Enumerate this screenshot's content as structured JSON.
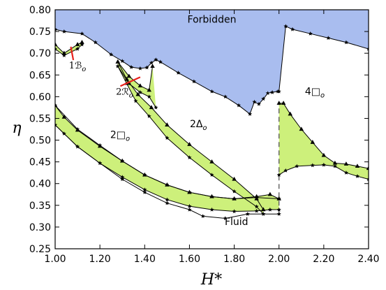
{
  "chart_data": {
    "type": "line",
    "title": "",
    "xlabel": "H*",
    "ylabel": "η",
    "xlim": [
      1.0,
      2.4
    ],
    "ylim": [
      0.25,
      0.8
    ],
    "x_ticks": [
      "1.00",
      "1.20",
      "1.40",
      "1.60",
      "1.80",
      "2.00",
      "2.20",
      "2.40"
    ],
    "y_ticks": [
      "0.25",
      "0.30",
      "0.35",
      "0.40",
      "0.45",
      "0.50",
      "0.55",
      "0.60",
      "0.65",
      "0.70",
      "0.75",
      "0.80"
    ],
    "grid": false,
    "legend": "none",
    "colors": {
      "forbidden_fill": "#a9bdef",
      "coexistence_fill": "#cdf07b",
      "line": "#000000",
      "annotation_arrow": "#e8201c"
    },
    "region_labels": [
      {
        "text": "Forbidden",
        "x": 1.7,
        "y": 0.77
      },
      {
        "text": "2□",
        "sub": "o",
        "x": 1.29,
        "y": 0.505
      },
      {
        "text": "2Δ",
        "sub": "o",
        "x": 1.64,
        "y": 0.53
      },
      {
        "text": "4□",
        "sub": "o",
        "x": 2.16,
        "y": 0.605
      },
      {
        "text": "Fluid",
        "x": 1.81,
        "y": 0.305
      }
    ],
    "annotations": [
      {
        "text": "1ℬ",
        "sub": "o",
        "x": 1.1,
        "y": 0.665,
        "arrow_to": [
          1.07,
          0.715
        ]
      },
      {
        "text": "2ℛ",
        "sub": "o",
        "x": 1.31,
        "y": 0.605,
        "arrow_to": [
          1.38,
          0.645
        ]
      }
    ],
    "forbidden_boundary": [
      [
        1.0,
        0.755
      ],
      [
        1.04,
        0.75
      ],
      [
        1.12,
        0.745
      ],
      [
        1.18,
        0.725
      ],
      [
        1.25,
        0.697
      ],
      [
        1.3,
        0.682
      ],
      [
        1.34,
        0.668
      ],
      [
        1.38,
        0.665
      ],
      [
        1.41,
        0.667
      ],
      [
        1.43,
        0.678
      ],
      [
        1.45,
        0.685
      ],
      [
        1.47,
        0.68
      ],
      [
        1.55,
        0.655
      ],
      [
        1.62,
        0.635
      ],
      [
        1.7,
        0.612
      ],
      [
        1.76,
        0.6
      ],
      [
        1.82,
        0.58
      ],
      [
        1.87,
        0.56
      ],
      [
        1.89,
        0.588
      ],
      [
        1.91,
        0.583
      ],
      [
        1.93,
        0.595
      ],
      [
        1.95,
        0.608
      ],
      [
        1.97,
        0.61
      ],
      [
        1.995,
        0.612
      ],
      [
        2.0,
        0.612
      ],
      [
        2.03,
        0.762
      ],
      [
        2.06,
        0.755
      ],
      [
        2.14,
        0.745
      ],
      [
        2.22,
        0.735
      ],
      [
        2.3,
        0.725
      ],
      [
        2.4,
        0.71
      ]
    ],
    "series": [
      {
        "id": "2sq_lower",
        "upper": [
          [
            1.0,
            0.58
          ],
          [
            1.04,
            0.553
          ],
          [
            1.1,
            0.523
          ],
          [
            1.2,
            0.486
          ],
          [
            1.3,
            0.452
          ],
          [
            1.4,
            0.42
          ],
          [
            1.5,
            0.397
          ],
          [
            1.6,
            0.38
          ],
          [
            1.7,
            0.37
          ],
          [
            1.8,
            0.365
          ],
          [
            1.9,
            0.37
          ],
          [
            1.96,
            0.375
          ],
          [
            2.0,
            0.365
          ]
        ],
        "lower": [
          [
            1.0,
            0.535
          ],
          [
            1.04,
            0.515
          ],
          [
            1.1,
            0.485
          ],
          [
            1.2,
            0.447
          ],
          [
            1.3,
            0.415
          ],
          [
            1.4,
            0.386
          ],
          [
            1.5,
            0.363
          ],
          [
            1.6,
            0.348
          ],
          [
            1.7,
            0.34
          ],
          [
            1.8,
            0.336
          ],
          [
            1.9,
            0.337
          ],
          [
            1.96,
            0.34
          ],
          [
            2.0,
            0.34
          ]
        ]
      },
      {
        "id": "2sq_upper",
        "upper": [
          [
            1.28,
            0.68
          ],
          [
            1.32,
            0.64
          ],
          [
            1.37,
            0.605
          ],
          [
            1.43,
            0.575
          ],
          [
            1.5,
            0.535
          ],
          [
            1.6,
            0.49
          ],
          [
            1.7,
            0.45
          ],
          [
            1.8,
            0.41
          ],
          [
            1.9,
            0.365
          ],
          [
            1.93,
            0.34
          ]
        ],
        "lower": [
          [
            1.28,
            0.67
          ],
          [
            1.32,
            0.63
          ],
          [
            1.36,
            0.59
          ],
          [
            1.42,
            0.555
          ],
          [
            1.5,
            0.505
          ],
          [
            1.6,
            0.46
          ],
          [
            1.7,
            0.42
          ],
          [
            1.8,
            0.382
          ],
          [
            1.9,
            0.347
          ],
          [
            1.93,
            0.33
          ]
        ]
      },
      {
        "id": "rect_sliver",
        "upper": [
          [
            1.28,
            0.68
          ],
          [
            1.33,
            0.647
          ],
          [
            1.38,
            0.625
          ],
          [
            1.42,
            0.615
          ],
          [
            1.435,
            0.67
          ]
        ],
        "lower": [
          [
            1.28,
            0.67
          ],
          [
            1.33,
            0.63
          ],
          [
            1.38,
            0.61
          ],
          [
            1.42,
            0.6
          ],
          [
            1.45,
            0.575
          ]
        ]
      },
      {
        "id": "buckled",
        "upper": [
          [
            1.0,
            0.72
          ],
          [
            1.04,
            0.7
          ],
          [
            1.1,
            0.72
          ],
          [
            1.12,
            0.725
          ]
        ],
        "lower": [
          [
            1.0,
            0.71
          ],
          [
            1.04,
            0.695
          ],
          [
            1.1,
            0.71
          ],
          [
            1.12,
            0.72
          ]
        ]
      },
      {
        "id": "fluid_upper_branch",
        "line": [
          [
            1.0,
            0.58
          ],
          [
            1.1,
            0.525
          ],
          [
            1.2,
            0.488
          ],
          [
            1.3,
            0.452
          ],
          [
            1.4,
            0.42
          ],
          [
            1.5,
            0.397
          ],
          [
            1.6,
            0.38
          ],
          [
            1.7,
            0.37
          ],
          [
            1.8,
            0.365
          ],
          [
            1.9,
            0.368
          ],
          [
            2.0,
            0.365
          ]
        ]
      },
      {
        "id": "4sq",
        "upper": [
          [
            2.0,
            0.585
          ],
          [
            2.02,
            0.585
          ],
          [
            2.05,
            0.56
          ],
          [
            2.1,
            0.525
          ],
          [
            2.15,
            0.495
          ],
          [
            2.2,
            0.465
          ],
          [
            2.25,
            0.447
          ],
          [
            2.3,
            0.445
          ],
          [
            2.35,
            0.44
          ],
          [
            2.4,
            0.435
          ]
        ],
        "lower": [
          [
            2.0,
            0.42
          ],
          [
            2.03,
            0.43
          ],
          [
            2.08,
            0.44
          ],
          [
            2.15,
            0.442
          ],
          [
            2.2,
            0.443
          ],
          [
            2.25,
            0.44
          ],
          [
            2.3,
            0.425
          ],
          [
            2.35,
            0.417
          ],
          [
            2.4,
            0.41
          ]
        ]
      },
      {
        "id": "fluid_bottom",
        "line": [
          [
            1.0,
            0.535
          ],
          [
            1.1,
            0.485
          ],
          [
            1.2,
            0.447
          ],
          [
            1.3,
            0.41
          ],
          [
            1.4,
            0.38
          ],
          [
            1.5,
            0.355
          ],
          [
            1.6,
            0.34
          ],
          [
            1.66,
            0.325
          ],
          [
            1.76,
            0.32
          ],
          [
            1.86,
            0.33
          ],
          [
            1.93,
            0.33
          ],
          [
            2.0,
            0.33
          ]
        ]
      }
    ],
    "dashed_segment": [
      [
        2.0,
        0.33
      ],
      [
        2.0,
        0.585
      ]
    ]
  }
}
